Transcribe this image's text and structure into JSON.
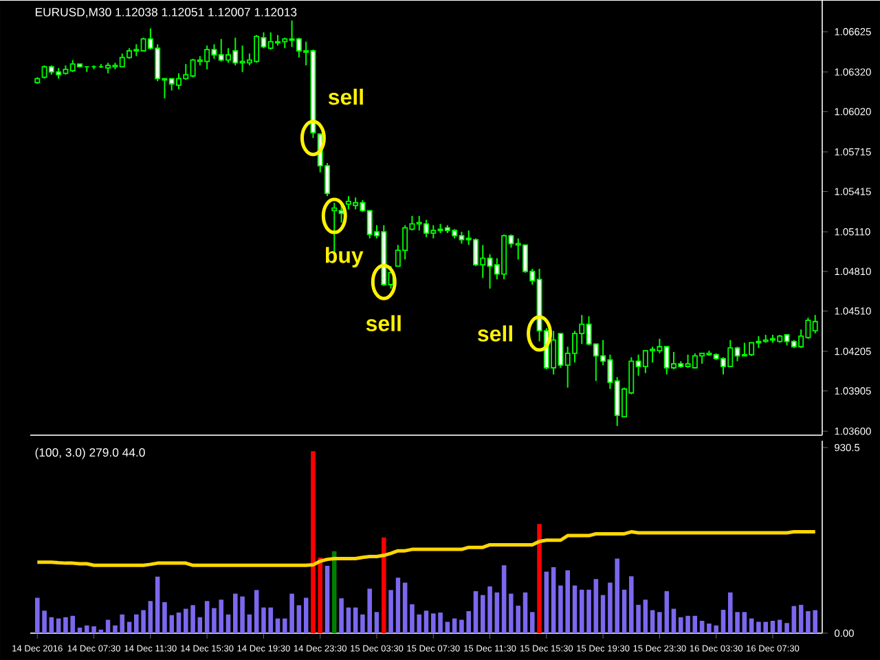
{
  "chart_data": [
    {
      "type": "candlestick",
      "title": "EURUSD,M30  1.12038 1.12051 1.12007 1.12013",
      "color": "#00ff00",
      "tick_labels": "y",
      "xlim": [
        "2016-12-14T03:00",
        "2016-12-16T11:00"
      ],
      "ylim": [
        1.0357,
        1.0686
      ],
      "yticks": [
        1.06625,
        {
          "value": 1.0632,
          "label": "1.06320"
        },
        {
          "value": 1.0602,
          "label": "1.06020"
        },
        1.05715,
        1.05415,
        {
          "value": 1.0511,
          "label": "1.05110"
        },
        {
          "value": 1.0481,
          "label": "1.04810"
        },
        {
          "value": 1.0451,
          "label": "1.04510"
        },
        1.04205,
        1.03905,
        {
          "value": 1.036,
          "label": "1.03600"
        }
      ],
      "annotations": [
        {
          "text": "sell",
          "x": "2016-12-14T23:00",
          "y": 1.0582
        },
        {
          "text": "buy",
          "x": "2016-12-15T00:30",
          "y": 1.0523
        },
        {
          "text": "sell",
          "x": "2016-12-15T04:00",
          "y": 1.0473
        },
        {
          "text": "sell",
          "x": "2016-12-15T15:00",
          "y": 1.0434
        }
      ],
      "x": [
        "2016-12-14T03:30",
        "2016-12-14T04:00",
        "2016-12-14T04:30",
        "2016-12-14T05:00",
        "2016-12-14T05:30",
        "2016-12-14T06:00",
        "2016-12-14T06:30",
        "2016-12-14T07:00",
        "2016-12-14T07:30",
        "2016-12-14T08:00",
        "2016-12-14T08:30",
        "2016-12-14T09:00",
        "2016-12-14T09:30",
        "2016-12-14T10:00",
        "2016-12-14T10:30",
        "2016-12-14T11:00",
        "2016-12-14T11:30",
        "2016-12-14T12:00",
        "2016-12-14T12:30",
        "2016-12-14T13:00",
        "2016-12-14T13:30",
        "2016-12-14T14:00",
        "2016-12-14T14:30",
        "2016-12-14T15:00",
        "2016-12-14T15:30",
        "2016-12-14T16:00",
        "2016-12-14T16:30",
        "2016-12-14T17:00",
        "2016-12-14T17:30",
        "2016-12-14T18:00",
        "2016-12-14T18:30",
        "2016-12-14T19:00",
        "2016-12-14T19:30",
        "2016-12-14T20:00",
        "2016-12-14T20:30",
        "2016-12-14T21:00",
        "2016-12-14T21:30",
        "2016-12-14T22:00",
        "2016-12-14T22:30",
        "2016-12-14T23:00",
        "2016-12-14T23:30",
        "2016-12-15T00:00",
        "2016-12-15T00:30",
        "2016-12-15T01:00",
        "2016-12-15T01:30",
        "2016-12-15T02:00",
        "2016-12-15T02:30",
        "2016-12-15T03:00",
        "2016-12-15T03:30",
        "2016-12-15T04:00",
        "2016-12-15T04:30",
        "2016-12-15T05:00",
        "2016-12-15T05:30",
        "2016-12-15T06:00",
        "2016-12-15T06:30",
        "2016-12-15T07:00",
        "2016-12-15T07:30",
        "2016-12-15T08:00",
        "2016-12-15T08:30",
        "2016-12-15T09:00",
        "2016-12-15T09:30",
        "2016-12-15T10:00",
        "2016-12-15T10:30",
        "2016-12-15T11:00",
        "2016-12-15T11:30",
        "2016-12-15T12:00",
        "2016-12-15T12:30",
        "2016-12-15T13:00",
        "2016-12-15T13:30",
        "2016-12-15T14:00",
        "2016-12-15T14:30",
        "2016-12-15T15:00",
        "2016-12-15T15:30",
        "2016-12-15T16:00",
        "2016-12-15T16:30",
        "2016-12-15T17:00",
        "2016-12-15T17:30",
        "2016-12-15T18:00",
        "2016-12-15T18:30",
        "2016-12-15T19:00",
        "2016-12-15T19:30",
        "2016-12-15T20:00",
        "2016-12-15T20:30",
        "2016-12-15T21:00",
        "2016-12-15T21:30",
        "2016-12-15T22:00",
        "2016-12-15T22:30",
        "2016-12-15T23:00",
        "2016-12-15T23:30",
        "2016-12-16T00:00",
        "2016-12-16T00:30",
        "2016-12-16T01:00",
        "2016-12-16T01:30",
        "2016-12-16T02:00",
        "2016-12-16T02:30",
        "2016-12-16T03:00",
        "2016-12-16T03:30",
        "2016-12-16T04:00",
        "2016-12-16T04:30",
        "2016-12-16T05:00",
        "2016-12-16T05:30",
        "2016-12-16T06:00",
        "2016-12-16T06:30",
        "2016-12-16T07:00",
        "2016-12-16T07:30",
        "2016-12-16T08:00",
        "2016-12-16T08:30",
        "2016-12-16T09:00",
        "2016-12-16T09:30",
        "2016-12-16T10:00",
        "2016-12-16T10:30"
      ],
      "ohlc": [
        [
          1.0624,
          1.0628,
          1.0623,
          1.0627
        ],
        [
          1.0628,
          1.0637,
          1.0627,
          1.0636
        ],
        [
          1.0636,
          1.0637,
          1.063,
          1.0632
        ],
        [
          1.0632,
          1.0635,
          1.0627,
          1.063
        ],
        [
          1.0631,
          1.0637,
          1.063,
          1.0634
        ],
        [
          1.0633,
          1.0641,
          1.0632,
          1.0638
        ],
        [
          1.0638,
          1.0638,
          1.0636,
          1.0636
        ],
        [
          1.0636,
          1.0636,
          1.0632,
          1.0636
        ],
        [
          1.0636,
          1.0637,
          1.0634,
          1.0636
        ],
        [
          1.0636,
          1.0638,
          1.0635,
          1.0636
        ],
        [
          1.0635,
          1.0639,
          1.0631,
          1.0637
        ],
        [
          1.0636,
          1.0639,
          1.0634,
          1.0637
        ],
        [
          1.0636,
          1.0646,
          1.0636,
          1.0643
        ],
        [
          1.0643,
          1.065,
          1.0642,
          1.0648
        ],
        [
          1.0648,
          1.0653,
          1.0644,
          1.0649
        ],
        [
          1.0648,
          1.0658,
          1.0648,
          1.0657
        ],
        [
          1.0657,
          1.0665,
          1.0649,
          1.065
        ],
        [
          1.065,
          1.0653,
          1.0625,
          1.0627
        ],
        [
          1.0627,
          1.0627,
          1.0612,
          1.0626
        ],
        [
          1.0627,
          1.0627,
          1.0618,
          1.0623
        ],
        [
          1.0622,
          1.0631,
          1.0619,
          1.0627
        ],
        [
          1.0627,
          1.0638,
          1.0626,
          1.063
        ],
        [
          1.0629,
          1.0642,
          1.0628,
          1.0641
        ],
        [
          1.064,
          1.0644,
          1.0637,
          1.0641
        ],
        [
          1.064,
          1.0652,
          1.0634,
          1.0649
        ],
        [
          1.0649,
          1.0653,
          1.0642,
          1.0645
        ],
        [
          1.0645,
          1.0657,
          1.064,
          1.0641
        ],
        [
          1.0641,
          1.065,
          1.0639,
          1.0645
        ],
        [
          1.0648,
          1.0658,
          1.0637,
          1.0639
        ],
        [
          1.0639,
          1.0652,
          1.0632,
          1.064
        ],
        [
          1.0639,
          1.0646,
          1.0637,
          1.0641
        ],
        [
          1.064,
          1.066,
          1.0639,
          1.0659
        ],
        [
          1.0658,
          1.0662,
          1.065,
          1.0651
        ],
        [
          1.065,
          1.0662,
          1.0649,
          1.0655
        ],
        [
          1.0654,
          1.066,
          1.0652,
          1.0655
        ],
        [
          1.0655,
          1.0658,
          1.065,
          1.0657
        ],
        [
          1.0657,
          1.0671,
          1.0651,
          1.0656
        ],
        [
          1.0657,
          1.0658,
          1.0643,
          1.0648
        ],
        [
          1.0648,
          1.0655,
          1.0637,
          1.0647
        ],
        [
          1.0648,
          1.0649,
          1.0582,
          1.0586
        ],
        [
          1.0585,
          1.0585,
          1.0556,
          1.0561
        ],
        [
          1.0561,
          1.0563,
          1.0538,
          1.054
        ],
        [
          1.0527,
          1.0533,
          1.0496,
          1.0529
        ],
        [
          1.0527,
          1.0533,
          1.0518,
          1.0525
        ],
        [
          1.0532,
          1.0538,
          1.0528,
          1.0534
        ],
        [
          1.0531,
          1.0537,
          1.0528,
          1.0533
        ],
        [
          1.0533,
          1.0535,
          1.0526,
          1.0527
        ],
        [
          1.0527,
          1.0527,
          1.0506,
          1.0509
        ],
        [
          1.0511,
          1.0516,
          1.0506,
          1.0508
        ],
        [
          1.0511,
          1.0516,
          1.047,
          1.0471
        ],
        [
          1.0471,
          1.0485,
          1.0468,
          1.048
        ],
        [
          1.0485,
          1.0501,
          1.0485,
          1.0497
        ],
        [
          1.0497,
          1.0516,
          1.049,
          1.0514
        ],
        [
          1.0513,
          1.0523,
          1.0512,
          1.0517
        ],
        [
          1.0517,
          1.0523,
          1.0512,
          1.0518
        ],
        [
          1.0517,
          1.052,
          1.0507,
          1.051
        ],
        [
          1.051,
          1.0516,
          1.0506,
          1.0512
        ],
        [
          1.0512,
          1.0517,
          1.051,
          1.0513
        ],
        [
          1.0514,
          1.0516,
          1.051,
          1.0512
        ],
        [
          1.0512,
          1.0513,
          1.0506,
          1.0508
        ],
        [
          1.0508,
          1.0511,
          1.0502,
          1.0505
        ],
        [
          1.0506,
          1.0512,
          1.0501,
          1.0505
        ],
        [
          1.0505,
          1.0506,
          1.0485,
          1.0486
        ],
        [
          1.0486,
          1.0501,
          1.0476,
          1.0491
        ],
        [
          1.0491,
          1.0494,
          1.0468,
          1.0485
        ],
        [
          1.0486,
          1.0491,
          1.0475,
          1.0479
        ],
        [
          1.0479,
          1.0509,
          1.0475,
          1.0508
        ],
        [
          1.0508,
          1.0509,
          1.0499,
          1.0502
        ],
        [
          1.0501,
          1.0506,
          1.049,
          1.0502
        ],
        [
          1.0501,
          1.0501,
          1.048,
          1.0481
        ],
        [
          1.0481,
          1.0483,
          1.0471,
          1.0474
        ],
        [
          1.0475,
          1.0483,
          1.0428,
          1.0436
        ],
        [
          1.0436,
          1.0438,
          1.0407,
          1.0408
        ],
        [
          1.0408,
          1.0436,
          1.0403,
          1.0429
        ],
        [
          1.0434,
          1.0434,
          1.0408,
          1.041
        ],
        [
          1.041,
          1.0424,
          1.0393,
          1.0419
        ],
        [
          1.0419,
          1.0436,
          1.0412,
          1.0434
        ],
        [
          1.0434,
          1.0448,
          1.0426,
          1.0441
        ],
        [
          1.0441,
          1.0447,
          1.0425,
          1.0426
        ],
        [
          1.0426,
          1.0426,
          1.0398,
          1.0417
        ],
        [
          1.0417,
          1.0429,
          1.041,
          1.0413
        ],
        [
          1.0414,
          1.0418,
          1.0392,
          1.0397
        ],
        [
          1.0398,
          1.0401,
          1.0364,
          1.0372
        ],
        [
          1.0371,
          1.0393,
          1.0371,
          1.0392
        ],
        [
          1.0389,
          1.0416,
          1.0388,
          1.0413
        ],
        [
          1.0413,
          1.0418,
          1.0402,
          1.0409
        ],
        [
          1.0409,
          1.0421,
          1.0404,
          1.0421
        ],
        [
          1.0421,
          1.0424,
          1.0412,
          1.0422
        ],
        [
          1.0421,
          1.043,
          1.0419,
          1.0424
        ],
        [
          1.0424,
          1.0424,
          1.0403,
          1.0408
        ],
        [
          1.0408,
          1.042,
          1.0407,
          1.0411
        ],
        [
          1.0411,
          1.0413,
          1.0408,
          1.0409
        ],
        [
          1.0409,
          1.0418,
          1.0408,
          1.0411
        ],
        [
          1.0408,
          1.0419,
          1.0408,
          1.0417
        ],
        [
          1.0417,
          1.0419,
          1.0411,
          1.0419
        ],
        [
          1.0418,
          1.0421,
          1.0417,
          1.0419
        ],
        [
          1.0418,
          1.0419,
          1.0414,
          1.0415
        ],
        [
          1.0415,
          1.0416,
          1.0403,
          1.0409
        ],
        [
          1.0409,
          1.0429,
          1.0409,
          1.0423
        ],
        [
          1.0423,
          1.0424,
          1.0413,
          1.0417
        ],
        [
          1.0417,
          1.0427,
          1.0417,
          1.0418
        ],
        [
          1.0418,
          1.0427,
          1.0417,
          1.0427
        ],
        [
          1.0427,
          1.0432,
          1.0423,
          1.0428
        ],
        [
          1.0428,
          1.0433,
          1.0427,
          1.0429
        ],
        [
          1.0429,
          1.0433,
          1.0427,
          1.043
        ],
        [
          1.0428,
          1.0433,
          1.0427,
          1.0432
        ],
        [
          1.0433,
          1.0433,
          1.0425,
          1.0428
        ],
        [
          1.0428,
          1.0429,
          1.0423,
          1.0424
        ],
        [
          1.0424,
          1.0437,
          1.0423,
          1.0432
        ],
        [
          1.0431,
          1.0446,
          1.043,
          1.0444
        ],
        [
          1.0436,
          1.0448,
          1.0434,
          1.0443
        ]
      ]
    },
    {
      "type": "bar",
      "title": "(100, 3.0) 279.0 44.0",
      "xlim": [
        "2016-12-14T03:00",
        "2016-12-16T11:00"
      ],
      "xticks": [
        {
          "value": "2016-12-14T03:30",
          "label": "14 Dec 2016"
        },
        {
          "value": "2016-12-14T07:30",
          "label": "14 Dec 07:30"
        },
        {
          "value": "2016-12-14T11:30",
          "label": "14 Dec 11:30"
        },
        {
          "value": "2016-12-14T15:30",
          "label": "14 Dec 15:30"
        },
        {
          "value": "2016-12-14T19:30",
          "label": "14 Dec 19:30"
        },
        {
          "value": "2016-12-14T23:30",
          "label": "14 Dec 23:30"
        },
        {
          "value": "2016-12-15T03:30",
          "label": "15 Dec 03:30"
        },
        {
          "value": "2016-12-15T07:30",
          "label": "15 Dec 07:30"
        },
        {
          "value": "2016-12-15T11:30",
          "label": "15 Dec 11:30"
        },
        {
          "value": "2016-12-15T15:30",
          "label": "15 Dec 15:30"
        },
        {
          "value": "2016-12-15T19:30",
          "label": "15 Dec 19:30"
        },
        {
          "value": "2016-12-15T23:30",
          "label": "15 Dec 23:30"
        },
        {
          "value": "2016-12-16T03:30",
          "label": "16 Dec 03:30"
        },
        {
          "value": "2016-12-16T07:30",
          "label": "16 Dec 07:30"
        }
      ],
      "ylim": [
        0,
        965
      ],
      "yticks": [
        {
          "value": 0,
          "label": "0.00"
        },
        930.5
      ],
      "x": [
        "2016-12-14T03:30",
        "2016-12-14T04:00",
        "2016-12-14T04:30",
        "2016-12-14T05:00",
        "2016-12-14T05:30",
        "2016-12-14T06:00",
        "2016-12-14T06:30",
        "2016-12-14T07:00",
        "2016-12-14T07:30",
        "2016-12-14T08:00",
        "2016-12-14T08:30",
        "2016-12-14T09:00",
        "2016-12-14T09:30",
        "2016-12-14T10:00",
        "2016-12-14T10:30",
        "2016-12-14T11:00",
        "2016-12-14T11:30",
        "2016-12-14T12:00",
        "2016-12-14T12:30",
        "2016-12-14T13:00",
        "2016-12-14T13:30",
        "2016-12-14T14:00",
        "2016-12-14T14:30",
        "2016-12-14T15:00",
        "2016-12-14T15:30",
        "2016-12-14T16:00",
        "2016-12-14T16:30",
        "2016-12-14T17:00",
        "2016-12-14T17:30",
        "2016-12-14T18:00",
        "2016-12-14T18:30",
        "2016-12-14T19:00",
        "2016-12-14T19:30",
        "2016-12-14T20:00",
        "2016-12-14T20:30",
        "2016-12-14T21:00",
        "2016-12-14T21:30",
        "2016-12-14T22:00",
        "2016-12-14T22:30",
        "2016-12-14T23:00",
        "2016-12-14T23:30",
        "2016-12-15T00:00",
        "2016-12-15T00:30",
        "2016-12-15T01:00",
        "2016-12-15T01:30",
        "2016-12-15T02:00",
        "2016-12-15T02:30",
        "2016-12-15T03:00",
        "2016-12-15T03:30",
        "2016-12-15T04:00",
        "2016-12-15T04:30",
        "2016-12-15T05:00",
        "2016-12-15T05:30",
        "2016-12-15T06:00",
        "2016-12-15T06:30",
        "2016-12-15T07:00",
        "2016-12-15T07:30",
        "2016-12-15T08:00",
        "2016-12-15T08:30",
        "2016-12-15T09:00",
        "2016-12-15T09:30",
        "2016-12-15T10:00",
        "2016-12-15T10:30",
        "2016-12-15T11:00",
        "2016-12-15T11:30",
        "2016-12-15T12:00",
        "2016-12-15T12:30",
        "2016-12-15T13:00",
        "2016-12-15T13:30",
        "2016-12-15T14:00",
        "2016-12-15T14:30",
        "2016-12-15T15:00",
        "2016-12-15T15:30",
        "2016-12-15T16:00",
        "2016-12-15T16:30",
        "2016-12-15T17:00",
        "2016-12-15T17:30",
        "2016-12-15T18:00",
        "2016-12-15T18:30",
        "2016-12-15T19:00",
        "2016-12-15T19:30",
        "2016-12-15T20:00",
        "2016-12-15T20:30",
        "2016-12-15T21:00",
        "2016-12-15T21:30",
        "2016-12-15T22:00",
        "2016-12-15T22:30",
        "2016-12-15T23:00",
        "2016-12-15T23:30",
        "2016-12-16T00:00",
        "2016-12-16T00:30",
        "2016-12-16T01:00",
        "2016-12-16T01:30",
        "2016-12-16T02:00",
        "2016-12-16T02:30",
        "2016-12-16T03:00",
        "2016-12-16T03:30",
        "2016-12-16T04:00",
        "2016-12-16T04:30",
        "2016-12-16T05:00",
        "2016-12-16T05:30",
        "2016-12-16T06:00",
        "2016-12-16T06:30",
        "2016-12-16T07:00",
        "2016-12-16T07:30",
        "2016-12-16T08:00",
        "2016-12-16T08:30",
        "2016-12-16T09:00",
        "2016-12-16T09:30",
        "2016-12-16T10:00",
        "2016-12-16T10:30"
      ],
      "series": [
        {
          "type": "bar",
          "values": [
            177,
            113,
            80,
            74,
            80,
            87,
            28,
            39,
            34,
            18,
            67,
            39,
            94,
            57,
            94,
            115,
            161,
            283,
            156,
            90,
            103,
            122,
            140,
            80,
            161,
            126,
            168,
            94,
            198,
            184,
            94,
            216,
            129,
            129,
            74,
            74,
            198,
            140,
            177,
            912,
            379,
            338,
            411,
            175,
            129,
            129,
            94,
            223,
            106,
            480,
            216,
            278,
            253,
            145,
            94,
            113,
            99,
            103,
            57,
            74,
            67,
            110,
            211,
            191,
            234,
            204,
            340,
            198,
            138,
            204,
            106,
            547,
            308,
            331,
            239,
            315,
            239,
            218,
            218,
            271,
            191,
            253,
            374,
            218,
            285,
            142,
            168,
            115,
            106,
            211,
            122,
            80,
            87,
            87,
            62,
            48,
            39,
            117,
            204,
            106,
            106,
            74,
            57,
            57,
            62,
            67,
            51,
            136,
            142,
            110,
            115
          ],
          "colors": [
            "#7b68ee",
            "#7b68ee",
            "#7b68ee",
            "#7b68ee",
            "#7b68ee",
            "#7b68ee",
            "#7b68ee",
            "#7b68ee",
            "#7b68ee",
            "#7b68ee",
            "#7b68ee",
            "#7b68ee",
            "#7b68ee",
            "#7b68ee",
            "#7b68ee",
            "#7b68ee",
            "#7b68ee",
            "#7b68ee",
            "#7b68ee",
            "#7b68ee",
            "#7b68ee",
            "#7b68ee",
            "#7b68ee",
            "#7b68ee",
            "#7b68ee",
            "#7b68ee",
            "#7b68ee",
            "#7b68ee",
            "#7b68ee",
            "#7b68ee",
            "#7b68ee",
            "#7b68ee",
            "#7b68ee",
            "#7b68ee",
            "#7b68ee",
            "#7b68ee",
            "#7b68ee",
            "#7b68ee",
            "#7b68ee",
            "#ff0000",
            "#ff0000",
            "#7b68ee",
            "#008000",
            "#7b68ee",
            "#7b68ee",
            "#7b68ee",
            "#7b68ee",
            "#7b68ee",
            "#7b68ee",
            "#ff0000",
            "#7b68ee",
            "#7b68ee",
            "#7b68ee",
            "#7b68ee",
            "#7b68ee",
            "#7b68ee",
            "#7b68ee",
            "#7b68ee",
            "#7b68ee",
            "#7b68ee",
            "#7b68ee",
            "#7b68ee",
            "#7b68ee",
            "#7b68ee",
            "#7b68ee",
            "#7b68ee",
            "#7b68ee",
            "#7b68ee",
            "#7b68ee",
            "#7b68ee",
            "#7b68ee",
            "#ff0000",
            "#7b68ee",
            "#7b68ee",
            "#7b68ee",
            "#7b68ee",
            "#7b68ee",
            "#7b68ee",
            "#7b68ee",
            "#7b68ee",
            "#7b68ee",
            "#7b68ee",
            "#7b68ee",
            "#7b68ee",
            "#7b68ee",
            "#7b68ee",
            "#7b68ee",
            "#7b68ee",
            "#7b68ee",
            "#7b68ee",
            "#7b68ee",
            "#7b68ee",
            "#7b68ee",
            "#7b68ee",
            "#7b68ee",
            "#7b68ee",
            "#7b68ee",
            "#7b68ee",
            "#7b68ee",
            "#7b68ee",
            "#7b68ee",
            "#7b68ee",
            "#7b68ee",
            "#7b68ee",
            "#7b68ee",
            "#7b68ee",
            "#7b68ee",
            "#7b68ee",
            "#7b68ee",
            "#7b68ee",
            "#7b68ee"
          ]
        },
        {
          "type": "line",
          "color": "#ffd700",
          "values": [
            356,
            356,
            356,
            353,
            351,
            351,
            348,
            348,
            340,
            340,
            340,
            340,
            340,
            340,
            340,
            340,
            345,
            351,
            351,
            351,
            351,
            351,
            340,
            340,
            340,
            340,
            340,
            340,
            340,
            340,
            340,
            340,
            340,
            340,
            340,
            340,
            340,
            340,
            340,
            343,
            361,
            370,
            374,
            374,
            374,
            374,
            380,
            384,
            384,
            390,
            400,
            413,
            413,
            420,
            420,
            420,
            420,
            420,
            420,
            420,
            420,
            430,
            430,
            430,
            443,
            443,
            443,
            443,
            443,
            443,
            443,
            460,
            466,
            466,
            466,
            489,
            489,
            489,
            489,
            498,
            498,
            498,
            498,
            498,
            508,
            503,
            503,
            503,
            503,
            503,
            503,
            503,
            503,
            503,
            503,
            503,
            503,
            503,
            503,
            503,
            503,
            503,
            503,
            503,
            503,
            503,
            503,
            508,
            508,
            508,
            508
          ]
        }
      ]
    }
  ]
}
